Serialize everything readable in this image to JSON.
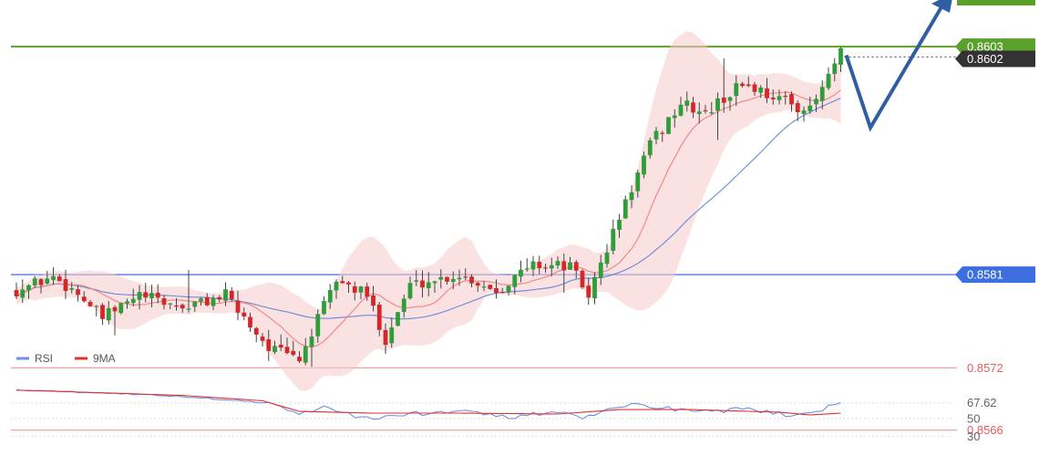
{
  "chart_data": [
    {
      "type": "candlestick",
      "title": "",
      "ylim": [
        0.85635,
        0.86075
      ],
      "price_labels": [
        {
          "value": 0.8603,
          "text": "0.8603",
          "color": "#5aa02c",
          "style": "tag"
        },
        {
          "value": 0.8602,
          "text": "0.8602",
          "color": "#333333",
          "style": "tag"
        },
        {
          "value": 0.8581,
          "text": "0.8581",
          "color": "#3d6fe0",
          "style": "tag"
        },
        {
          "value": 0.8572,
          "text": "0.8572",
          "color": "#e35d5d",
          "style": "text"
        },
        {
          "value": 0.8566,
          "text": "0.8566",
          "color": "#e35d5d",
          "style": "text"
        }
      ],
      "horizontal_lines": [
        {
          "value": 0.8603,
          "color": "#5aa02c"
        },
        {
          "value": 0.8581,
          "color": "#3d6fe0"
        },
        {
          "value": 0.8572,
          "color": "#f0a0a0"
        },
        {
          "value": 0.8566,
          "color": "#f0a0a0"
        }
      ],
      "current_price": 0.8602,
      "colors": {
        "up": "#2f9e3a",
        "down": "#d62728",
        "ma_fast": "#f08080",
        "ma_slow": "#5b7fd6",
        "band_fill": "#f8caca",
        "projection": "#2f5ea3"
      },
      "anchors": [
        {
          "i": 0,
          "p": 0.85795
        },
        {
          "i": 6,
          "p": 0.85808
        },
        {
          "i": 10,
          "p": 0.85792
        },
        {
          "i": 14,
          "p": 0.85768
        },
        {
          "i": 20,
          "p": 0.8579
        },
        {
          "i": 27,
          "p": 0.85778
        },
        {
          "i": 34,
          "p": 0.8579
        },
        {
          "i": 41,
          "p": 0.8574
        },
        {
          "i": 46,
          "p": 0.85728
        },
        {
          "i": 52,
          "p": 0.85805
        },
        {
          "i": 57,
          "p": 0.8579
        },
        {
          "i": 60,
          "p": 0.85748
        },
        {
          "i": 64,
          "p": 0.858
        },
        {
          "i": 72,
          "p": 0.8581
        },
        {
          "i": 78,
          "p": 0.85795
        },
        {
          "i": 84,
          "p": 0.8582
        },
        {
          "i": 90,
          "p": 0.85818
        },
        {
          "i": 93,
          "p": 0.8579
        },
        {
          "i": 98,
          "p": 0.85865
        },
        {
          "i": 103,
          "p": 0.85935
        },
        {
          "i": 108,
          "p": 0.85975
        },
        {
          "i": 112,
          "p": 0.85965
        },
        {
          "i": 118,
          "p": 0.85995
        },
        {
          "i": 124,
          "p": 0.8598
        },
        {
          "i": 129,
          "p": 0.85968
        },
        {
          "i": 134,
          "p": 0.86023
        }
      ],
      "candle_count": 135
    },
    {
      "type": "line",
      "title": "",
      "legend": [
        {
          "name": "RSI",
          "color": "#6f8fe0"
        },
        {
          "name": "9MA",
          "color": "#e03030"
        }
      ],
      "ylim": [
        20,
        90
      ],
      "levels": [
        {
          "value": 67.62,
          "text": "67.62"
        },
        {
          "value": 50,
          "text": "50"
        },
        {
          "value": 30,
          "text": "30"
        }
      ],
      "rsi_anchors": [
        {
          "i": 0,
          "v": 82
        },
        {
          "i": 14,
          "v": 79
        },
        {
          "i": 27,
          "v": 75
        },
        {
          "i": 40,
          "v": 68
        },
        {
          "i": 46,
          "v": 55
        },
        {
          "i": 50,
          "v": 63
        },
        {
          "i": 58,
          "v": 48
        },
        {
          "i": 64,
          "v": 56
        },
        {
          "i": 72,
          "v": 57
        },
        {
          "i": 80,
          "v": 52
        },
        {
          "i": 88,
          "v": 56
        },
        {
          "i": 93,
          "v": 51
        },
        {
          "i": 98,
          "v": 65
        },
        {
          "i": 104,
          "v": 64
        },
        {
          "i": 110,
          "v": 58
        },
        {
          "i": 118,
          "v": 60
        },
        {
          "i": 124,
          "v": 55
        },
        {
          "i": 129,
          "v": 54
        },
        {
          "i": 134,
          "v": 67.62
        }
      ],
      "ma_anchors": [
        {
          "i": 0,
          "v": 82
        },
        {
          "i": 14,
          "v": 79
        },
        {
          "i": 27,
          "v": 76
        },
        {
          "i": 40,
          "v": 70
        },
        {
          "i": 46,
          "v": 58
        },
        {
          "i": 58,
          "v": 56
        },
        {
          "i": 72,
          "v": 56
        },
        {
          "i": 88,
          "v": 55
        },
        {
          "i": 98,
          "v": 60
        },
        {
          "i": 110,
          "v": 60
        },
        {
          "i": 124,
          "v": 57
        },
        {
          "i": 129,
          "v": 54
        },
        {
          "i": 134,
          "v": 56
        }
      ]
    }
  ]
}
